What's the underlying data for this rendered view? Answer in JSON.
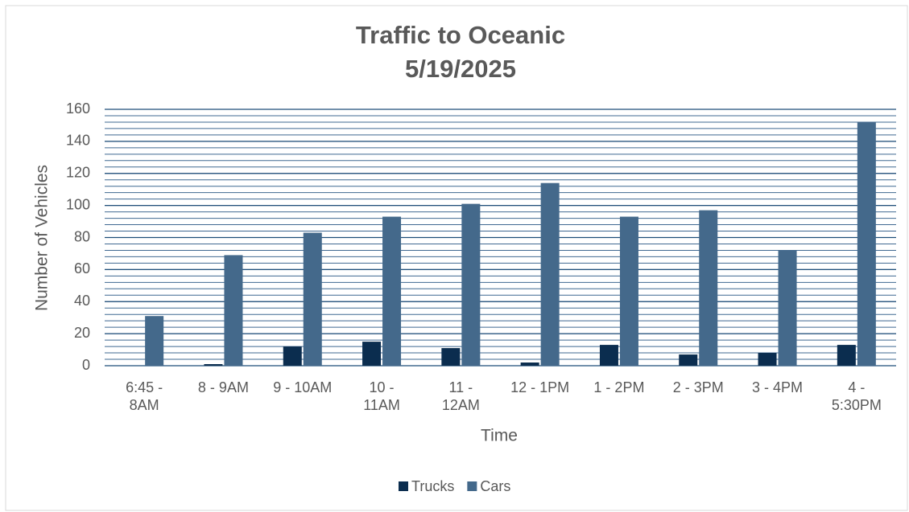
{
  "chart_data": {
    "type": "bar",
    "title": "Traffic to Oceanic",
    "subtitle": "5/19/2025",
    "x_label": "Time",
    "y_label": "Number of Vehicles",
    "categories": [
      "6:45 -\n8AM",
      "8 - 9AM",
      "9 - 10AM",
      "10 -\n11AM",
      "11 -\n12AM",
      "12 - 1PM",
      "1 - 2PM",
      "2 - 3PM",
      "3 - 4PM",
      "4 -\n5:30PM"
    ],
    "series": [
      {
        "name": "Trucks",
        "color": "#0b2d4f",
        "values": [
          0,
          1,
          12,
          15,
          11,
          2,
          13,
          7,
          8,
          13
        ]
      },
      {
        "name": "Cars",
        "color": "#44698b",
        "values": [
          31,
          69,
          83,
          93,
          101,
          114,
          93,
          97,
          72,
          152
        ]
      }
    ],
    "ylim": [
      0,
      160
    ],
    "yticks": [
      0,
      20,
      40,
      60,
      80,
      100,
      120,
      140,
      160
    ],
    "grid": true,
    "minor_grid": 4,
    "legend": "bottom"
  }
}
